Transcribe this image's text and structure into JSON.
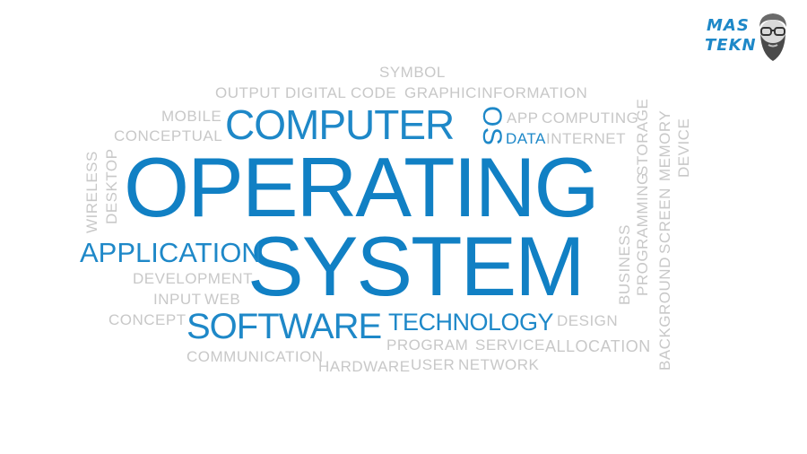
{
  "title_words": {
    "line1": "OPERATING",
    "line2": "SYSTEM"
  },
  "words": {
    "symbol": "SYMBOL",
    "output": "OUTPUT",
    "digital": "DIGITAL",
    "code": "CODE",
    "graphic": "GRAPHIC",
    "information": "INFORMATION",
    "mobile": "MOBILE",
    "computer": "COMPUTER",
    "os": "OS",
    "app": "APP",
    "computing": "COMPUTING",
    "conceptual": "CONCEPTUAL",
    "data": "DATA",
    "internet": "INTERNET",
    "wireless": "WIRELESS",
    "desktop": "DESKTOP",
    "application": "APPLICATION",
    "development": "DEVELOPMENT",
    "input": "INPUT",
    "web": "WEB",
    "concept": "CONCEPT",
    "software": "SOFTWARE",
    "technology": "TECHNOLOGY",
    "design": "DESIGN",
    "program": "PROGRAM",
    "service": "SERVICE",
    "allocation": "ALLOCATION",
    "communication": "COMMUNICATION",
    "hardware": "HARDWARE",
    "user": "USER",
    "network": "NETWORK",
    "storage": "STORAGE",
    "programming": "PROGRAMMING",
    "business": "BUSINESS",
    "memory": "MEMORY",
    "screen": "SCREEN",
    "background": "BACKGROUND",
    "device": "DEVICE"
  },
  "logo": {
    "line1": "MAS",
    "line2": "TEKN",
    "icon": "bearded-face-icon"
  },
  "colors": {
    "primary_blue": "#1180c4",
    "accent_blue": "#1e88c8",
    "muted_gray": "#c8c8c8",
    "background": "#ffffff"
  }
}
